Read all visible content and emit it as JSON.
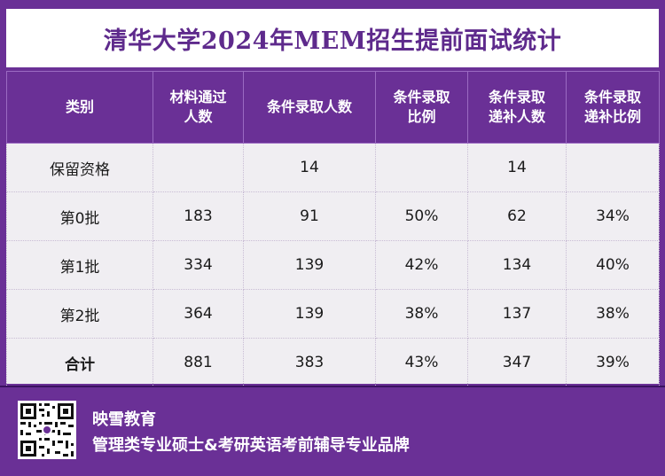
{
  "title": "清华大学2024年MEM招生提前面试统计",
  "table": {
    "headers": [
      {
        "line1": "类别",
        "line2": ""
      },
      {
        "line1": "材料通过",
        "line2": "人数"
      },
      {
        "line1": "条件录取人数",
        "line2": ""
      },
      {
        "line1": "条件录取",
        "line2": "比例"
      },
      {
        "line1": "条件录取",
        "line2": "递补人数"
      },
      {
        "line1": "条件录取",
        "line2": "递补比例"
      }
    ],
    "rows": [
      [
        "保留资格",
        "",
        "14",
        "",
        "14",
        ""
      ],
      [
        "第0批",
        "183",
        "91",
        "50%",
        "62",
        "34%"
      ],
      [
        "第1批",
        "334",
        "139",
        "42%",
        "134",
        "40%"
      ],
      [
        "第2批",
        "364",
        "139",
        "38%",
        "137",
        "38%"
      ],
      [
        "合计",
        "881",
        "383",
        "43%",
        "347",
        "39%"
      ]
    ]
  },
  "footer": {
    "brand": "映雪教育",
    "slogan": "管理类专业硕士&考研英语考前辅导专业品牌",
    "qr_icon": "qr-code-icon"
  },
  "watermark": "映雪教育",
  "colors": {
    "purple": "#6a3096",
    "title_text": "#5e2a8c",
    "table_bg": "#f0eef2"
  }
}
